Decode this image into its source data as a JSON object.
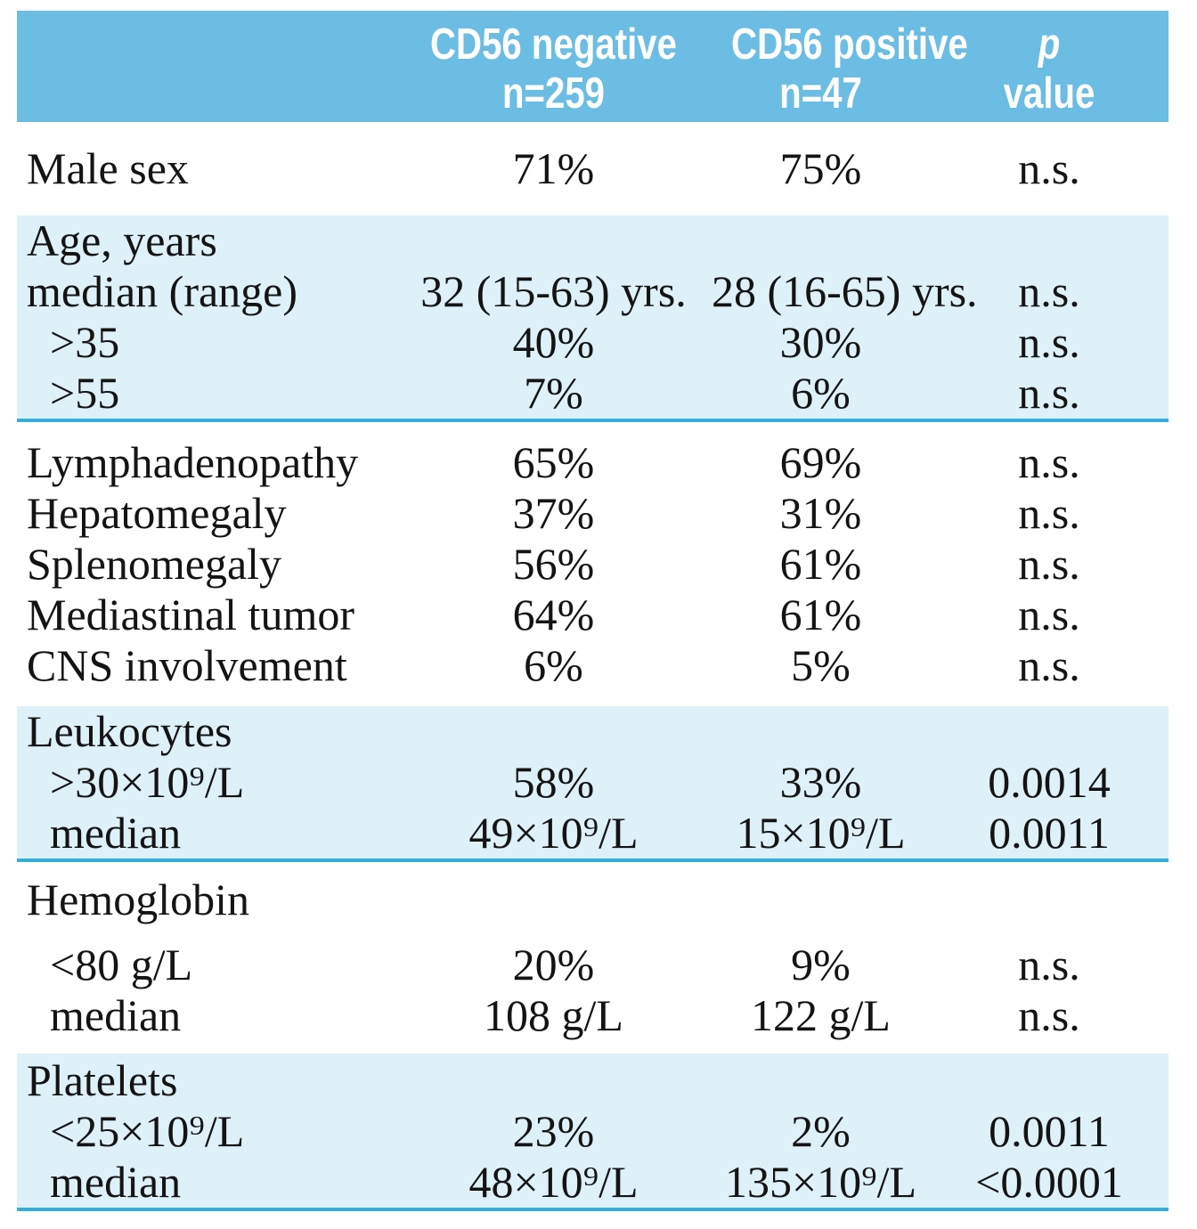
{
  "colors": {
    "header_bg": "#6cbde3",
    "band_bg": "#def0f8",
    "divider_rule": "#35aede",
    "header_text": "#ffffff",
    "body_text": "#141414"
  },
  "header": {
    "group_negative": {
      "line1": "CD56 negative",
      "line2": "n=259"
    },
    "group_positive": {
      "line1": "CD56 positive",
      "line2": "n=47"
    },
    "p_column": {
      "line1": "p",
      "line2": "value"
    }
  },
  "sections": [
    {
      "name": "male-sex",
      "rows": [
        {
          "label": "Male sex",
          "neg": "71%",
          "pos": "75%",
          "p": "n.s."
        }
      ]
    },
    {
      "name": "age",
      "rows": [
        {
          "label": "Age, years",
          "neg": "",
          "pos": "",
          "p": ""
        },
        {
          "label": "median (range)",
          "neg": "32 (15-63) yrs.",
          "pos": "28 (16-65) yrs.",
          "p": "n.s."
        },
        {
          "label": ">35",
          "neg": "40%",
          "pos": "30%",
          "p": "n.s."
        },
        {
          "label": ">55",
          "neg": "7%",
          "pos": "6%",
          "p": "n.s."
        }
      ]
    },
    {
      "name": "clinical-findings",
      "rows": [
        {
          "label": "Lymphadenopathy",
          "neg": "65%",
          "pos": "69%",
          "p": "n.s."
        },
        {
          "label": "Hepatomegaly",
          "neg": "37%",
          "pos": "31%",
          "p": "n.s."
        },
        {
          "label": "Splenomegaly",
          "neg": "56%",
          "pos": "61%",
          "p": "n.s."
        },
        {
          "label": "Mediastinal tumor",
          "neg": "64%",
          "pos": "61%",
          "p": "n.s."
        },
        {
          "label": "CNS involvement",
          "neg": "6%",
          "pos": "5%",
          "p": "n.s."
        }
      ]
    },
    {
      "name": "leukocytes",
      "rows": [
        {
          "label": "Leukocytes",
          "neg": "",
          "pos": "",
          "p": ""
        },
        {
          "label": ">30×10⁹/L",
          "neg": "58%",
          "pos": "33%",
          "p": "0.0014"
        },
        {
          "label": "median",
          "neg": "49×10⁹/L",
          "pos": "15×10⁹/L",
          "p": "0.0011"
        }
      ]
    },
    {
      "name": "hemoglobin",
      "rows": [
        {
          "label": "Hemoglobin",
          "neg": "",
          "pos": "",
          "p": ""
        },
        {
          "label": "<80 g/L",
          "neg": "20%",
          "pos": "9%",
          "p": "n.s."
        },
        {
          "label": "median",
          "neg": "108 g/L",
          "pos": "122 g/L",
          "p": "n.s."
        }
      ]
    },
    {
      "name": "platelets",
      "rows": [
        {
          "label": "Platelets",
          "neg": "",
          "pos": "",
          "p": ""
        },
        {
          "label": "<25×10⁹/L",
          "neg": "23%",
          "pos": "2%",
          "p": "0.0011"
        },
        {
          "label": "median",
          "neg": "48×10⁹/L",
          "pos": "135×10⁹/L",
          "p": "<0.0001"
        }
      ]
    }
  ]
}
